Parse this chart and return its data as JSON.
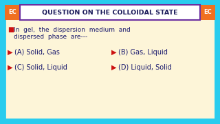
{
  "title": "QUESTION ON THE COLLOIDAL STATE",
  "bg_color": "#29ccee",
  "content_bg": "#fdf5d8",
  "title_bg": "#ffffff",
  "title_border_color": "#6b2fa0",
  "ec_bg": "#f07020",
  "ec_text": "EC",
  "arrow_color": "#cc1111",
  "question_color": "#1a1a6e",
  "option_color": "#1a1a6e",
  "title_color": "#1a1a5a",
  "checkbox_color": "#cc1111",
  "q_line1": "In  gel,  the  dispersion  medium  and",
  "q_line2": "dispersed  phase  are---",
  "opt_A": "(A) Solid, Gas",
  "opt_B": "(B) Gas, Liquid",
  "opt_C": "(C) Solid, Liquid",
  "opt_D": "(D) Liquid, Solid"
}
